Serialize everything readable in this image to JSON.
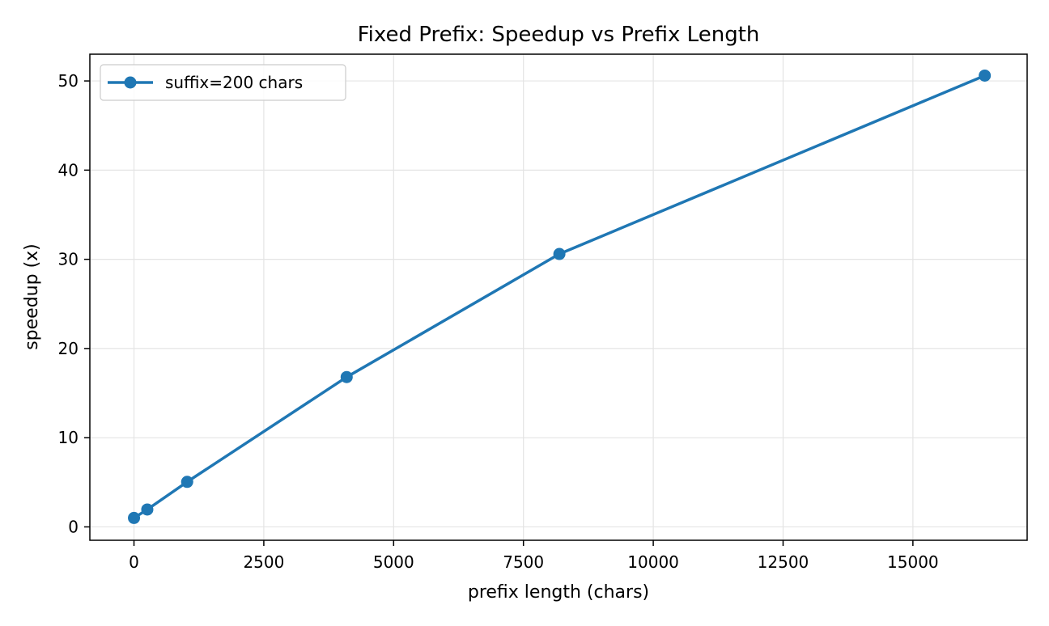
{
  "chart_data": {
    "type": "line",
    "title": "Fixed Prefix: Speedup vs Prefix Length",
    "xlabel": "prefix length (chars)",
    "ylabel": "speedup (x)",
    "xlim": [
      -850,
      17200
    ],
    "ylim": [
      -1.5,
      53.0
    ],
    "xticks": [
      0,
      2500,
      5000,
      7500,
      10000,
      12500,
      15000
    ],
    "yticks": [
      0,
      10,
      20,
      30,
      40,
      50
    ],
    "grid": true,
    "legend_position": "top-left",
    "series": [
      {
        "name": "suffix=200 chars",
        "color": "#1f77b4",
        "marker": "circle",
        "x": [
          0,
          256,
          1024,
          4096,
          8192,
          16384
        ],
        "y": [
          1.0,
          1.95,
          5.05,
          16.8,
          30.6,
          50.6
        ]
      }
    ]
  }
}
